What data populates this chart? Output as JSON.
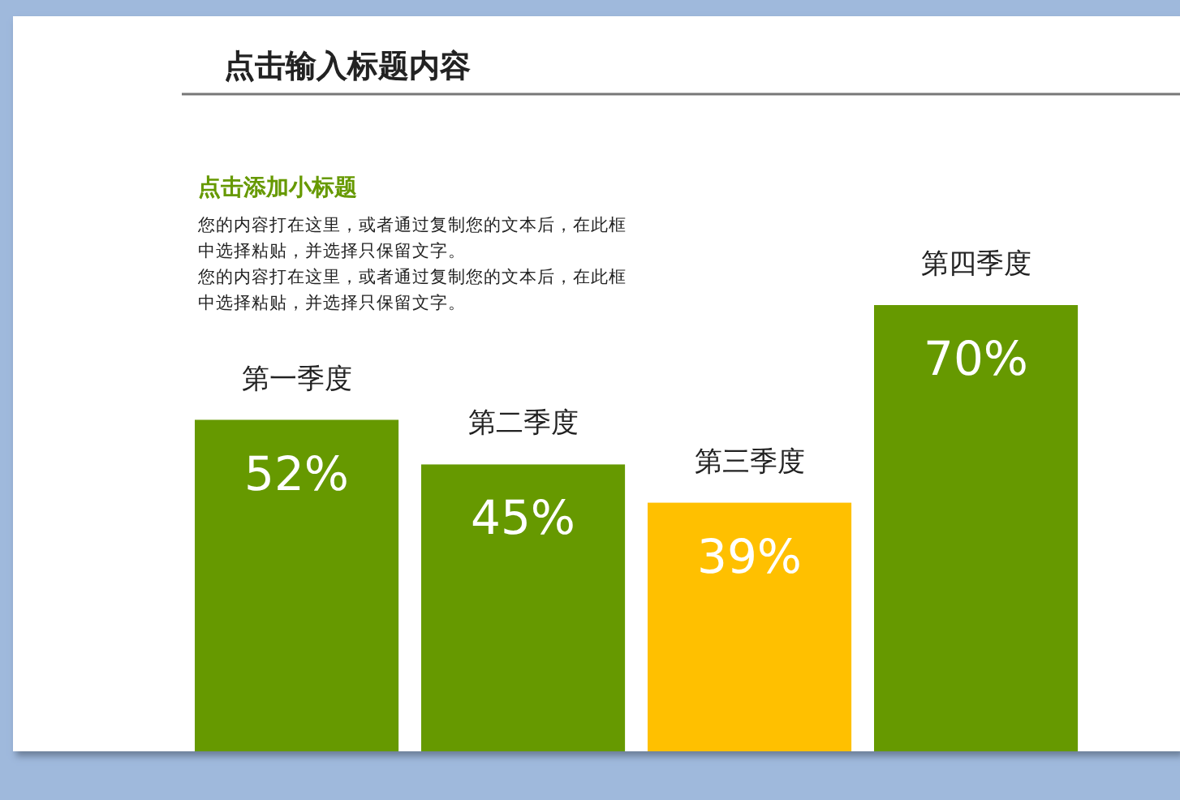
{
  "chart_data": {
    "type": "bar",
    "title": "点击输入标题内容",
    "subtitle": "点击添加小标题",
    "annotations": [
      "您的内容打在这里，或者通过复制您的文本后，在此框中选择粘贴，并选择只保留文字。",
      "您的内容打在这里，或者通过复制您的文本后，在此框中选择粘贴，并选择只保留文字。"
    ],
    "categories": [
      "第一季度",
      "第二季度",
      "第三季度",
      "第四季度"
    ],
    "values": [
      52,
      45,
      39,
      70
    ],
    "colors": [
      "#669900",
      "#669900",
      "#ffc000",
      "#669900"
    ],
    "value_labels": [
      "52%",
      "45%",
      "39%",
      "70%"
    ]
  }
}
